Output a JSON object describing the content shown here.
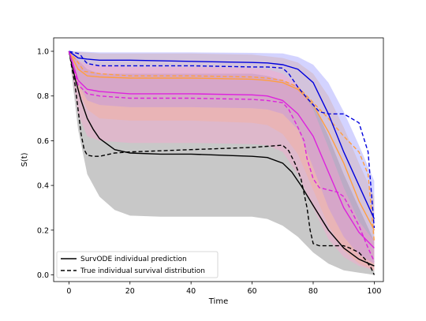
{
  "chart_data": {
    "type": "line",
    "title": "",
    "xlabel": "Time",
    "ylabel": "S(t)",
    "xlim": [
      -5,
      103
    ],
    "ylim": [
      -0.03,
      1.06
    ],
    "xticks": [
      0,
      20,
      40,
      60,
      80,
      100
    ],
    "yticks": [
      0.0,
      0.2,
      0.4,
      0.6,
      0.8,
      1.0
    ],
    "xtick_labels": [
      "0",
      "20",
      "40",
      "60",
      "80",
      "100"
    ],
    "ytick_labels": [
      "0.0",
      "0.2",
      "0.4",
      "0.6",
      "0.8",
      "1.0"
    ],
    "grid": false,
    "legend_position": "bottom-left",
    "legend": [
      {
        "label": "SurvODE individual prediction",
        "style": "solid"
      },
      {
        "label": "True individual survival distribution",
        "style": "dashed"
      }
    ],
    "series": [
      {
        "color": "#000000",
        "band_color": "#c8c8c8",
        "band_opacity": 1.0,
        "prediction": {
          "x": [
            0,
            2,
            4,
            6,
            8,
            10,
            15,
            20,
            30,
            40,
            50,
            60,
            65,
            70,
            73,
            76,
            80,
            85,
            90,
            95,
            100
          ],
          "y": [
            1.0,
            0.88,
            0.78,
            0.7,
            0.65,
            0.61,
            0.56,
            0.545,
            0.54,
            0.54,
            0.535,
            0.53,
            0.525,
            0.5,
            0.46,
            0.4,
            0.31,
            0.2,
            0.12,
            0.07,
            0.04
          ]
        },
        "truth": {
          "x": [
            0,
            2,
            4,
            5,
            6,
            8,
            10,
            15,
            20,
            30,
            40,
            50,
            60,
            65,
            70,
            72,
            74,
            76,
            78,
            79,
            80,
            82,
            84,
            85,
            88,
            90,
            92,
            95,
            97,
            99,
            100
          ],
          "y": [
            1.0,
            0.85,
            0.63,
            0.56,
            0.535,
            0.53,
            0.53,
            0.545,
            0.55,
            0.555,
            0.56,
            0.565,
            0.57,
            0.575,
            0.58,
            0.555,
            0.5,
            0.43,
            0.3,
            0.2,
            0.14,
            0.13,
            0.13,
            0.13,
            0.13,
            0.13,
            0.12,
            0.1,
            0.07,
            0.03,
            0.0
          ]
        },
        "band_lower": {
          "x": [
            0,
            3,
            6,
            10,
            15,
            20,
            30,
            40,
            50,
            60,
            65,
            70,
            75,
            80,
            85,
            90,
            95,
            100
          ],
          "y": [
            1.0,
            0.65,
            0.45,
            0.35,
            0.29,
            0.265,
            0.26,
            0.26,
            0.26,
            0.26,
            0.25,
            0.22,
            0.17,
            0.1,
            0.05,
            0.02,
            0.01,
            0.0
          ]
        },
        "band_upper": {
          "x": [
            0,
            3,
            6,
            10,
            20,
            40,
            60,
            65,
            70,
            75,
            80,
            85,
            90,
            95,
            100
          ],
          "y": [
            1.0,
            0.96,
            0.92,
            0.9,
            0.9,
            0.9,
            0.9,
            0.89,
            0.87,
            0.84,
            0.77,
            0.62,
            0.45,
            0.3,
            0.15
          ]
        }
      },
      {
        "color": "#ff9f40",
        "band_color": "#ffb866",
        "band_opacity": 0.35,
        "prediction": {
          "x": [
            0,
            3,
            6,
            10,
            20,
            40,
            60,
            65,
            70,
            75,
            80,
            85,
            90,
            95,
            100
          ],
          "y": [
            1.0,
            0.92,
            0.89,
            0.885,
            0.88,
            0.88,
            0.875,
            0.87,
            0.86,
            0.83,
            0.76,
            0.64,
            0.5,
            0.33,
            0.2
          ]
        },
        "truth": {
          "x": [
            0,
            3,
            5,
            10,
            20,
            40,
            60,
            65,
            70,
            75,
            78,
            80,
            85,
            90,
            95,
            98,
            100
          ],
          "y": [
            1.0,
            0.95,
            0.91,
            0.9,
            0.89,
            0.89,
            0.885,
            0.88,
            0.87,
            0.84,
            0.8,
            0.77,
            0.7,
            0.62,
            0.55,
            0.45,
            0.15
          ]
        },
        "band_lower": {
          "x": [
            0,
            3,
            6,
            10,
            20,
            40,
            60,
            65,
            70,
            75,
            80,
            85,
            90,
            95,
            100
          ],
          "y": [
            1.0,
            0.83,
            0.74,
            0.7,
            0.69,
            0.69,
            0.68,
            0.67,
            0.63,
            0.54,
            0.38,
            0.22,
            0.11,
            0.05,
            0.02
          ]
        },
        "band_upper": {
          "x": [
            0,
            5,
            10,
            20,
            40,
            60,
            70,
            75,
            80,
            85,
            90,
            95,
            100
          ],
          "y": [
            1.0,
            0.995,
            0.99,
            0.99,
            0.99,
            0.985,
            0.97,
            0.95,
            0.9,
            0.8,
            0.66,
            0.5,
            0.35
          ]
        }
      },
      {
        "color": "#0000dd",
        "band_color": "#8080ff",
        "band_opacity": 0.35,
        "prediction": {
          "x": [
            0,
            3,
            6,
            10,
            20,
            40,
            60,
            65,
            70,
            75,
            80,
            85,
            90,
            95,
            100
          ],
          "y": [
            1.0,
            0.97,
            0.965,
            0.96,
            0.96,
            0.955,
            0.95,
            0.948,
            0.94,
            0.92,
            0.86,
            0.72,
            0.55,
            0.4,
            0.25
          ]
        },
        "truth": {
          "x": [
            0,
            3,
            4,
            5,
            6,
            8,
            10,
            20,
            40,
            60,
            65,
            70,
            72,
            75,
            78,
            80,
            82,
            85,
            90,
            95,
            98,
            100
          ],
          "y": [
            1.0,
            0.99,
            0.98,
            0.96,
            0.945,
            0.94,
            0.935,
            0.935,
            0.935,
            0.93,
            0.93,
            0.925,
            0.9,
            0.84,
            0.79,
            0.76,
            0.73,
            0.72,
            0.72,
            0.68,
            0.55,
            0.21
          ]
        },
        "band_lower": {
          "x": [
            0,
            3,
            6,
            10,
            20,
            40,
            60,
            65,
            70,
            75,
            80,
            85,
            90,
            95,
            100
          ],
          "y": [
            1.0,
            0.86,
            0.78,
            0.76,
            0.75,
            0.75,
            0.745,
            0.74,
            0.72,
            0.65,
            0.48,
            0.3,
            0.17,
            0.09,
            0.05
          ]
        },
        "band_upper": {
          "x": [
            0,
            5,
            10,
            20,
            40,
            60,
            70,
            75,
            80,
            85,
            90,
            95,
            100
          ],
          "y": [
            1.0,
            0.998,
            0.995,
            0.995,
            0.995,
            0.993,
            0.99,
            0.975,
            0.94,
            0.86,
            0.73,
            0.58,
            0.42
          ]
        }
      },
      {
        "color": "#dd22dd",
        "band_color": "#ff9fcf",
        "band_opacity": 0.4,
        "prediction": {
          "x": [
            0,
            3,
            6,
            10,
            20,
            40,
            60,
            65,
            70,
            75,
            80,
            85,
            90,
            95,
            100
          ],
          "y": [
            1.0,
            0.87,
            0.83,
            0.82,
            0.81,
            0.81,
            0.805,
            0.8,
            0.78,
            0.72,
            0.62,
            0.46,
            0.3,
            0.19,
            0.12
          ]
        },
        "truth": {
          "x": [
            0,
            3,
            6,
            10,
            20,
            40,
            60,
            65,
            70,
            72,
            75,
            77,
            78,
            80,
            82,
            85,
            88,
            90,
            92,
            95,
            98,
            100
          ],
          "y": [
            1.0,
            0.85,
            0.81,
            0.8,
            0.79,
            0.79,
            0.785,
            0.78,
            0.77,
            0.74,
            0.66,
            0.6,
            0.52,
            0.43,
            0.39,
            0.38,
            0.37,
            0.35,
            0.3,
            0.22,
            0.12,
            0.06
          ]
        },
        "band_lower": {
          "x": [
            0,
            3,
            6,
            10,
            20,
            40,
            60,
            65,
            70,
            75,
            80,
            85,
            90,
            95,
            100
          ],
          "y": [
            1.0,
            0.72,
            0.62,
            0.6,
            0.59,
            0.59,
            0.585,
            0.58,
            0.55,
            0.45,
            0.3,
            0.16,
            0.08,
            0.04,
            0.02
          ]
        },
        "band_upper": {
          "x": [
            0,
            3,
            6,
            10,
            20,
            40,
            60,
            65,
            70,
            75,
            80,
            85,
            90,
            95,
            100
          ],
          "y": [
            1.0,
            0.96,
            0.94,
            0.935,
            0.93,
            0.93,
            0.925,
            0.92,
            0.9,
            0.85,
            0.74,
            0.57,
            0.39,
            0.24,
            0.15
          ]
        }
      }
    ]
  }
}
